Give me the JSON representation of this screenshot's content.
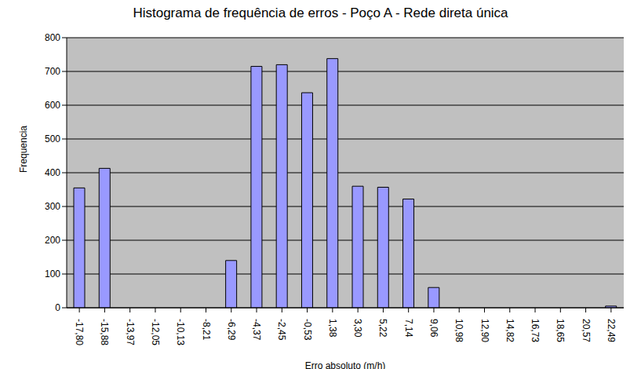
{
  "chart_data": {
    "type": "bar",
    "title": "Histograma de frequência de erros - Poço A - Rede direta única",
    "x_label": "Erro absoluto (m/h)",
    "y_label": "Frequencia",
    "categories": [
      "-17,80",
      "-15,88",
      "-13,97",
      "-12,05",
      "-10,13",
      "-8,21",
      "-6,29",
      "-4,37",
      "-2,45",
      "-0,53",
      "1,38",
      "3,30",
      "5,22",
      "7,14",
      "9,06",
      "10,98",
      "12,90",
      "14,82",
      "16,73",
      "18,65",
      "20,57",
      "22,49"
    ],
    "values": [
      355,
      413,
      0,
      0,
      0,
      0,
      140,
      715,
      720,
      637,
      738,
      360,
      357,
      322,
      60,
      0,
      0,
      0,
      0,
      0,
      0,
      5
    ],
    "color": "#9999ff",
    "ylim": [
      0,
      800
    ],
    "yticks": [
      0,
      100,
      200,
      300,
      400,
      500,
      600,
      700,
      800
    ],
    "grid": true
  }
}
